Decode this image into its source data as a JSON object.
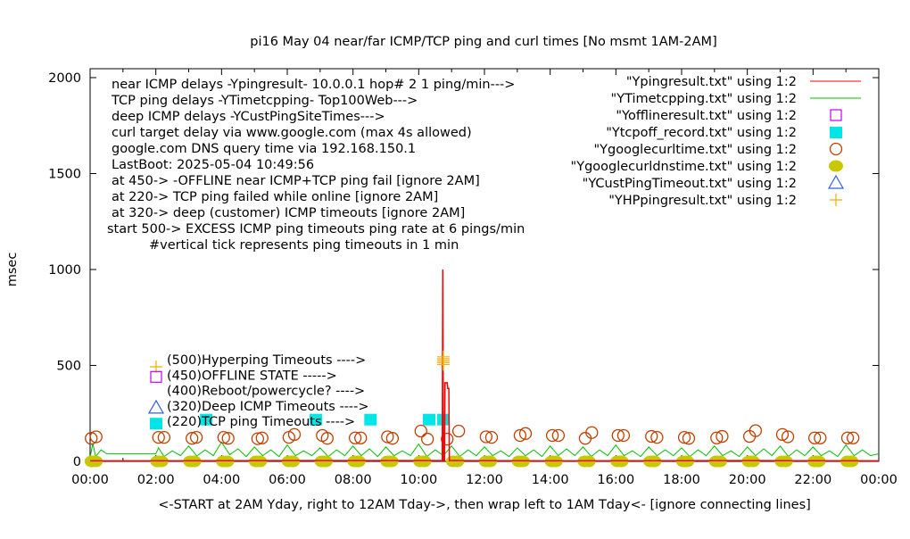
{
  "chart_data": {
    "type": "line",
    "title": "pi16 May 04  near/far ICMP/TCP ping and curl times [No msmt 1AM-2AM]",
    "xlabel": "<-START at 2AM Yday, right to 12AM Tday->, then wrap left to 1AM Tday<- [ignore connecting lines]",
    "ylabel": "msec",
    "xlim": [
      "00:00",
      "24:00"
    ],
    "ylim": [
      0,
      2000
    ],
    "x_ticks": [
      "00:00",
      "02:00",
      "04:00",
      "06:00",
      "08:00",
      "10:00",
      "12:00",
      "14:00",
      "16:00",
      "18:00",
      "20:00",
      "22:00",
      "00:00"
    ],
    "y_ticks": [
      0,
      500,
      1000,
      1500,
      2000
    ],
    "grid": false,
    "annotations_left": [
      "near ICMP delays -Ypingresult- 10.0.0.1 hop# 2 1 ping/min--->",
      "TCP ping delays -YTimetcpping- Top100Web--->",
      "deep ICMP delays -YCustPingSiteTimes--->",
      "curl target delay via www.google.com (max 4s allowed)",
      "google.com DNS query time via 192.168.150.1",
      "LastBoot: 2025-05-04 10:49:56",
      "at 450-> -OFFLINE near ICMP+TCP ping fail [ignore 2AM]",
      "at 220-> TCP ping failed while online [ignore 2AM]",
      "at 320-> deep (customer) ICMP timeouts [ignore 2AM]",
      "start 500-> EXCESS ICMP ping timeouts ping rate at 6 pings/min",
      "#vertical tick represents ping timeouts in 1 min"
    ],
    "level_legend": [
      {
        "label": "(500)Hyperping Timeouts ---->",
        "marker": "plus",
        "color": "#f0b000"
      },
      {
        "label": "(450)OFFLINE STATE ----->",
        "marker": "open-square",
        "color": "#c000ff"
      },
      {
        "label": "(400)Reboot/powercycle? ---->",
        "marker": "none",
        "color": "#000000"
      },
      {
        "label": "(320)Deep ICMP Timeouts ---->",
        "marker": "open-triangle",
        "color": "#3060e0"
      },
      {
        "label": "(220)TCP ping Timeouts ---->",
        "marker": "filled-square",
        "color": "#00e5e5"
      }
    ],
    "legend_placement": "top-right",
    "series": [
      {
        "name": "\"Ypingresult.txt\" using 1:2",
        "style": "line",
        "color": "#ff0000",
        "points": [
          [
            "00:00",
            3
          ],
          [
            "02:00",
            3
          ],
          [
            "06:00",
            4
          ],
          [
            "10:40",
            4
          ],
          [
            "10:43",
            4
          ],
          [
            "10:44",
            1000
          ],
          [
            "10:45",
            4
          ],
          [
            "10:47",
            4
          ],
          [
            "10:48",
            410
          ],
          [
            "10:52",
            410
          ],
          [
            "10:53",
            380
          ],
          [
            "10:55",
            380
          ],
          [
            "10:56",
            4
          ],
          [
            "14:00",
            3
          ],
          [
            "20:00",
            4
          ],
          [
            "24:00",
            3
          ]
        ]
      },
      {
        "name": "\"YTimetcpping.txt\" using 1:2",
        "style": "line",
        "color": "#00c000",
        "points": [
          [
            "00:00",
            20
          ],
          [
            "00:05",
            95
          ],
          [
            "00:10",
            25
          ],
          [
            "00:20",
            60
          ],
          [
            "00:30",
            40
          ],
          [
            "02:00",
            40
          ],
          [
            "02:05",
            70
          ],
          [
            "02:15",
            25
          ],
          [
            "02:30",
            55
          ],
          [
            "02:45",
            30
          ],
          [
            "03:00",
            80
          ],
          [
            "03:15",
            28
          ],
          [
            "03:30",
            60
          ],
          [
            "03:45",
            30
          ],
          [
            "04:00",
            100
          ],
          [
            "04:15",
            35
          ],
          [
            "04:30",
            65
          ],
          [
            "04:45",
            25
          ],
          [
            "05:00",
            75
          ],
          [
            "05:15",
            30
          ],
          [
            "05:30",
            60
          ],
          [
            "05:45",
            25
          ],
          [
            "06:00",
            85
          ],
          [
            "06:15",
            30
          ],
          [
            "06:30",
            55
          ],
          [
            "06:45",
            30
          ],
          [
            "07:00",
            70
          ],
          [
            "07:15",
            25
          ],
          [
            "07:30",
            60
          ],
          [
            "07:45",
            30
          ],
          [
            "08:00",
            80
          ],
          [
            "08:15",
            30
          ],
          [
            "08:30",
            65
          ],
          [
            "08:45",
            25
          ],
          [
            "09:00",
            75
          ],
          [
            "09:15",
            30
          ],
          [
            "09:30",
            55
          ],
          [
            "09:45",
            30
          ],
          [
            "10:00",
            90
          ],
          [
            "10:15",
            25
          ],
          [
            "10:30",
            60
          ],
          [
            "10:45",
            30
          ],
          [
            "11:00",
            80
          ],
          [
            "11:15",
            25
          ],
          [
            "11:30",
            60
          ],
          [
            "11:45",
            30
          ],
          [
            "12:00",
            75
          ],
          [
            "12:15",
            30
          ],
          [
            "12:30",
            55
          ],
          [
            "12:45",
            25
          ],
          [
            "13:00",
            70
          ],
          [
            "13:15",
            30
          ],
          [
            "13:30",
            60
          ],
          [
            "13:45",
            25
          ],
          [
            "14:00",
            80
          ],
          [
            "14:15",
            30
          ],
          [
            "14:30",
            65
          ],
          [
            "14:45",
            30
          ],
          [
            "15:00",
            75
          ],
          [
            "15:15",
            25
          ],
          [
            "15:30",
            60
          ],
          [
            "15:45",
            30
          ],
          [
            "16:00",
            85
          ],
          [
            "16:15",
            30
          ],
          [
            "16:30",
            55
          ],
          [
            "16:45",
            25
          ],
          [
            "17:00",
            75
          ],
          [
            "17:15",
            30
          ],
          [
            "17:30",
            60
          ],
          [
            "17:45",
            30
          ],
          [
            "18:00",
            70
          ],
          [
            "18:15",
            25
          ],
          [
            "18:30",
            60
          ],
          [
            "18:45",
            30
          ],
          [
            "19:00",
            80
          ],
          [
            "19:15",
            30
          ],
          [
            "19:30",
            55
          ],
          [
            "19:45",
            25
          ],
          [
            "20:00",
            75
          ],
          [
            "20:15",
            30
          ],
          [
            "20:30",
            65
          ],
          [
            "20:45",
            30
          ],
          [
            "21:00",
            80
          ],
          [
            "21:15",
            25
          ],
          [
            "21:30",
            60
          ],
          [
            "21:45",
            30
          ],
          [
            "22:00",
            75
          ],
          [
            "22:15",
            30
          ],
          [
            "22:30",
            55
          ],
          [
            "22:45",
            25
          ],
          [
            "23:00",
            85
          ],
          [
            "23:15",
            30
          ],
          [
            "23:30",
            60
          ],
          [
            "23:45",
            30
          ],
          [
            "24:00",
            40
          ]
        ]
      },
      {
        "name": "\"Yofflineresult.txt\" using 1:2",
        "style": "open-square",
        "color": "#c000ff",
        "points": []
      },
      {
        "name": "\"Ytcpoff_record.txt\" using 1:2",
        "style": "filled-square",
        "color": "#00e5e5",
        "points": [
          [
            "03:32",
            220
          ],
          [
            "06:52",
            220
          ],
          [
            "08:32",
            220
          ],
          [
            "10:19",
            220
          ],
          [
            "10:45",
            220
          ]
        ]
      },
      {
        "name": "\"Ygooglecurltime.txt\" using 1:2",
        "style": "open-circle",
        "color": "#c04000",
        "points": [
          [
            "00:02",
            120
          ],
          [
            "00:11",
            128
          ],
          [
            "02:05",
            125
          ],
          [
            "02:15",
            125
          ],
          [
            "03:06",
            120
          ],
          [
            "03:14",
            125
          ],
          [
            "04:04",
            125
          ],
          [
            "04:12",
            120
          ],
          [
            "05:06",
            118
          ],
          [
            "05:14",
            122
          ],
          [
            "06:03",
            125
          ],
          [
            "06:13",
            140
          ],
          [
            "07:04",
            135
          ],
          [
            "07:13",
            120
          ],
          [
            "08:04",
            122
          ],
          [
            "08:14",
            122
          ],
          [
            "09:03",
            128
          ],
          [
            "09:12",
            120
          ],
          [
            "10:04",
            158
          ],
          [
            "10:16",
            116
          ],
          [
            "10:52",
            116
          ],
          [
            "11:13",
            158
          ],
          [
            "12:03",
            128
          ],
          [
            "12:13",
            125
          ],
          [
            "13:05",
            135
          ],
          [
            "13:15",
            145
          ],
          [
            "14:04",
            135
          ],
          [
            "14:15",
            135
          ],
          [
            "15:04",
            120
          ],
          [
            "15:16",
            150
          ],
          [
            "16:04",
            135
          ],
          [
            "16:14",
            135
          ],
          [
            "17:05",
            130
          ],
          [
            "17:15",
            125
          ],
          [
            "18:05",
            125
          ],
          [
            "18:13",
            120
          ],
          [
            "19:04",
            122
          ],
          [
            "19:14",
            130
          ],
          [
            "20:04",
            130
          ],
          [
            "20:15",
            160
          ],
          [
            "21:04",
            140
          ],
          [
            "21:14",
            128
          ],
          [
            "22:03",
            122
          ],
          [
            "22:13",
            122
          ],
          [
            "23:03",
            122
          ],
          [
            "23:13",
            122
          ]
        ]
      },
      {
        "name": "\"Ygooglecurldnstime.txt\" using 1:2",
        "style": "filled-circle",
        "color": "#c8c800",
        "points": [
          [
            "00:03",
            0
          ],
          [
            "00:10",
            0
          ],
          [
            "02:03",
            0
          ],
          [
            "02:10",
            0
          ],
          [
            "03:03",
            0
          ],
          [
            "03:10",
            0
          ],
          [
            "04:03",
            0
          ],
          [
            "04:10",
            0
          ],
          [
            "05:03",
            0
          ],
          [
            "05:10",
            0
          ],
          [
            "06:03",
            0
          ],
          [
            "06:10",
            0
          ],
          [
            "07:03",
            0
          ],
          [
            "07:10",
            0
          ],
          [
            "08:03",
            0
          ],
          [
            "08:10",
            0
          ],
          [
            "09:03",
            0
          ],
          [
            "09:10",
            0
          ],
          [
            "10:03",
            0
          ],
          [
            "10:10",
            0
          ],
          [
            "11:03",
            0
          ],
          [
            "11:10",
            0
          ],
          [
            "12:03",
            0
          ],
          [
            "12:10",
            0
          ],
          [
            "13:03",
            0
          ],
          [
            "13:10",
            0
          ],
          [
            "14:03",
            0
          ],
          [
            "14:10",
            0
          ],
          [
            "15:03",
            0
          ],
          [
            "15:10",
            0
          ],
          [
            "16:03",
            0
          ],
          [
            "16:10",
            0
          ],
          [
            "17:03",
            0
          ],
          [
            "17:10",
            0
          ],
          [
            "18:03",
            0
          ],
          [
            "18:10",
            0
          ],
          [
            "19:03",
            0
          ],
          [
            "19:10",
            0
          ],
          [
            "20:03",
            0
          ],
          [
            "20:10",
            0
          ],
          [
            "21:03",
            0
          ],
          [
            "21:10",
            0
          ],
          [
            "22:03",
            0
          ],
          [
            "22:10",
            0
          ],
          [
            "23:03",
            0
          ],
          [
            "23:10",
            0
          ]
        ]
      },
      {
        "name": "\"YCustPingTimeout.txt\" using 1:2",
        "style": "open-triangle",
        "color": "#3060e0",
        "points": []
      },
      {
        "name": "\"YHPpingresult.txt\" using 1:2",
        "style": "plus",
        "color": "#f0b000",
        "points": [
          [
            "10:45",
            505
          ],
          [
            "10:45",
            515
          ],
          [
            "10:45",
            525
          ],
          [
            "10:45",
            535
          ],
          [
            "10:45",
            545
          ]
        ]
      }
    ]
  }
}
